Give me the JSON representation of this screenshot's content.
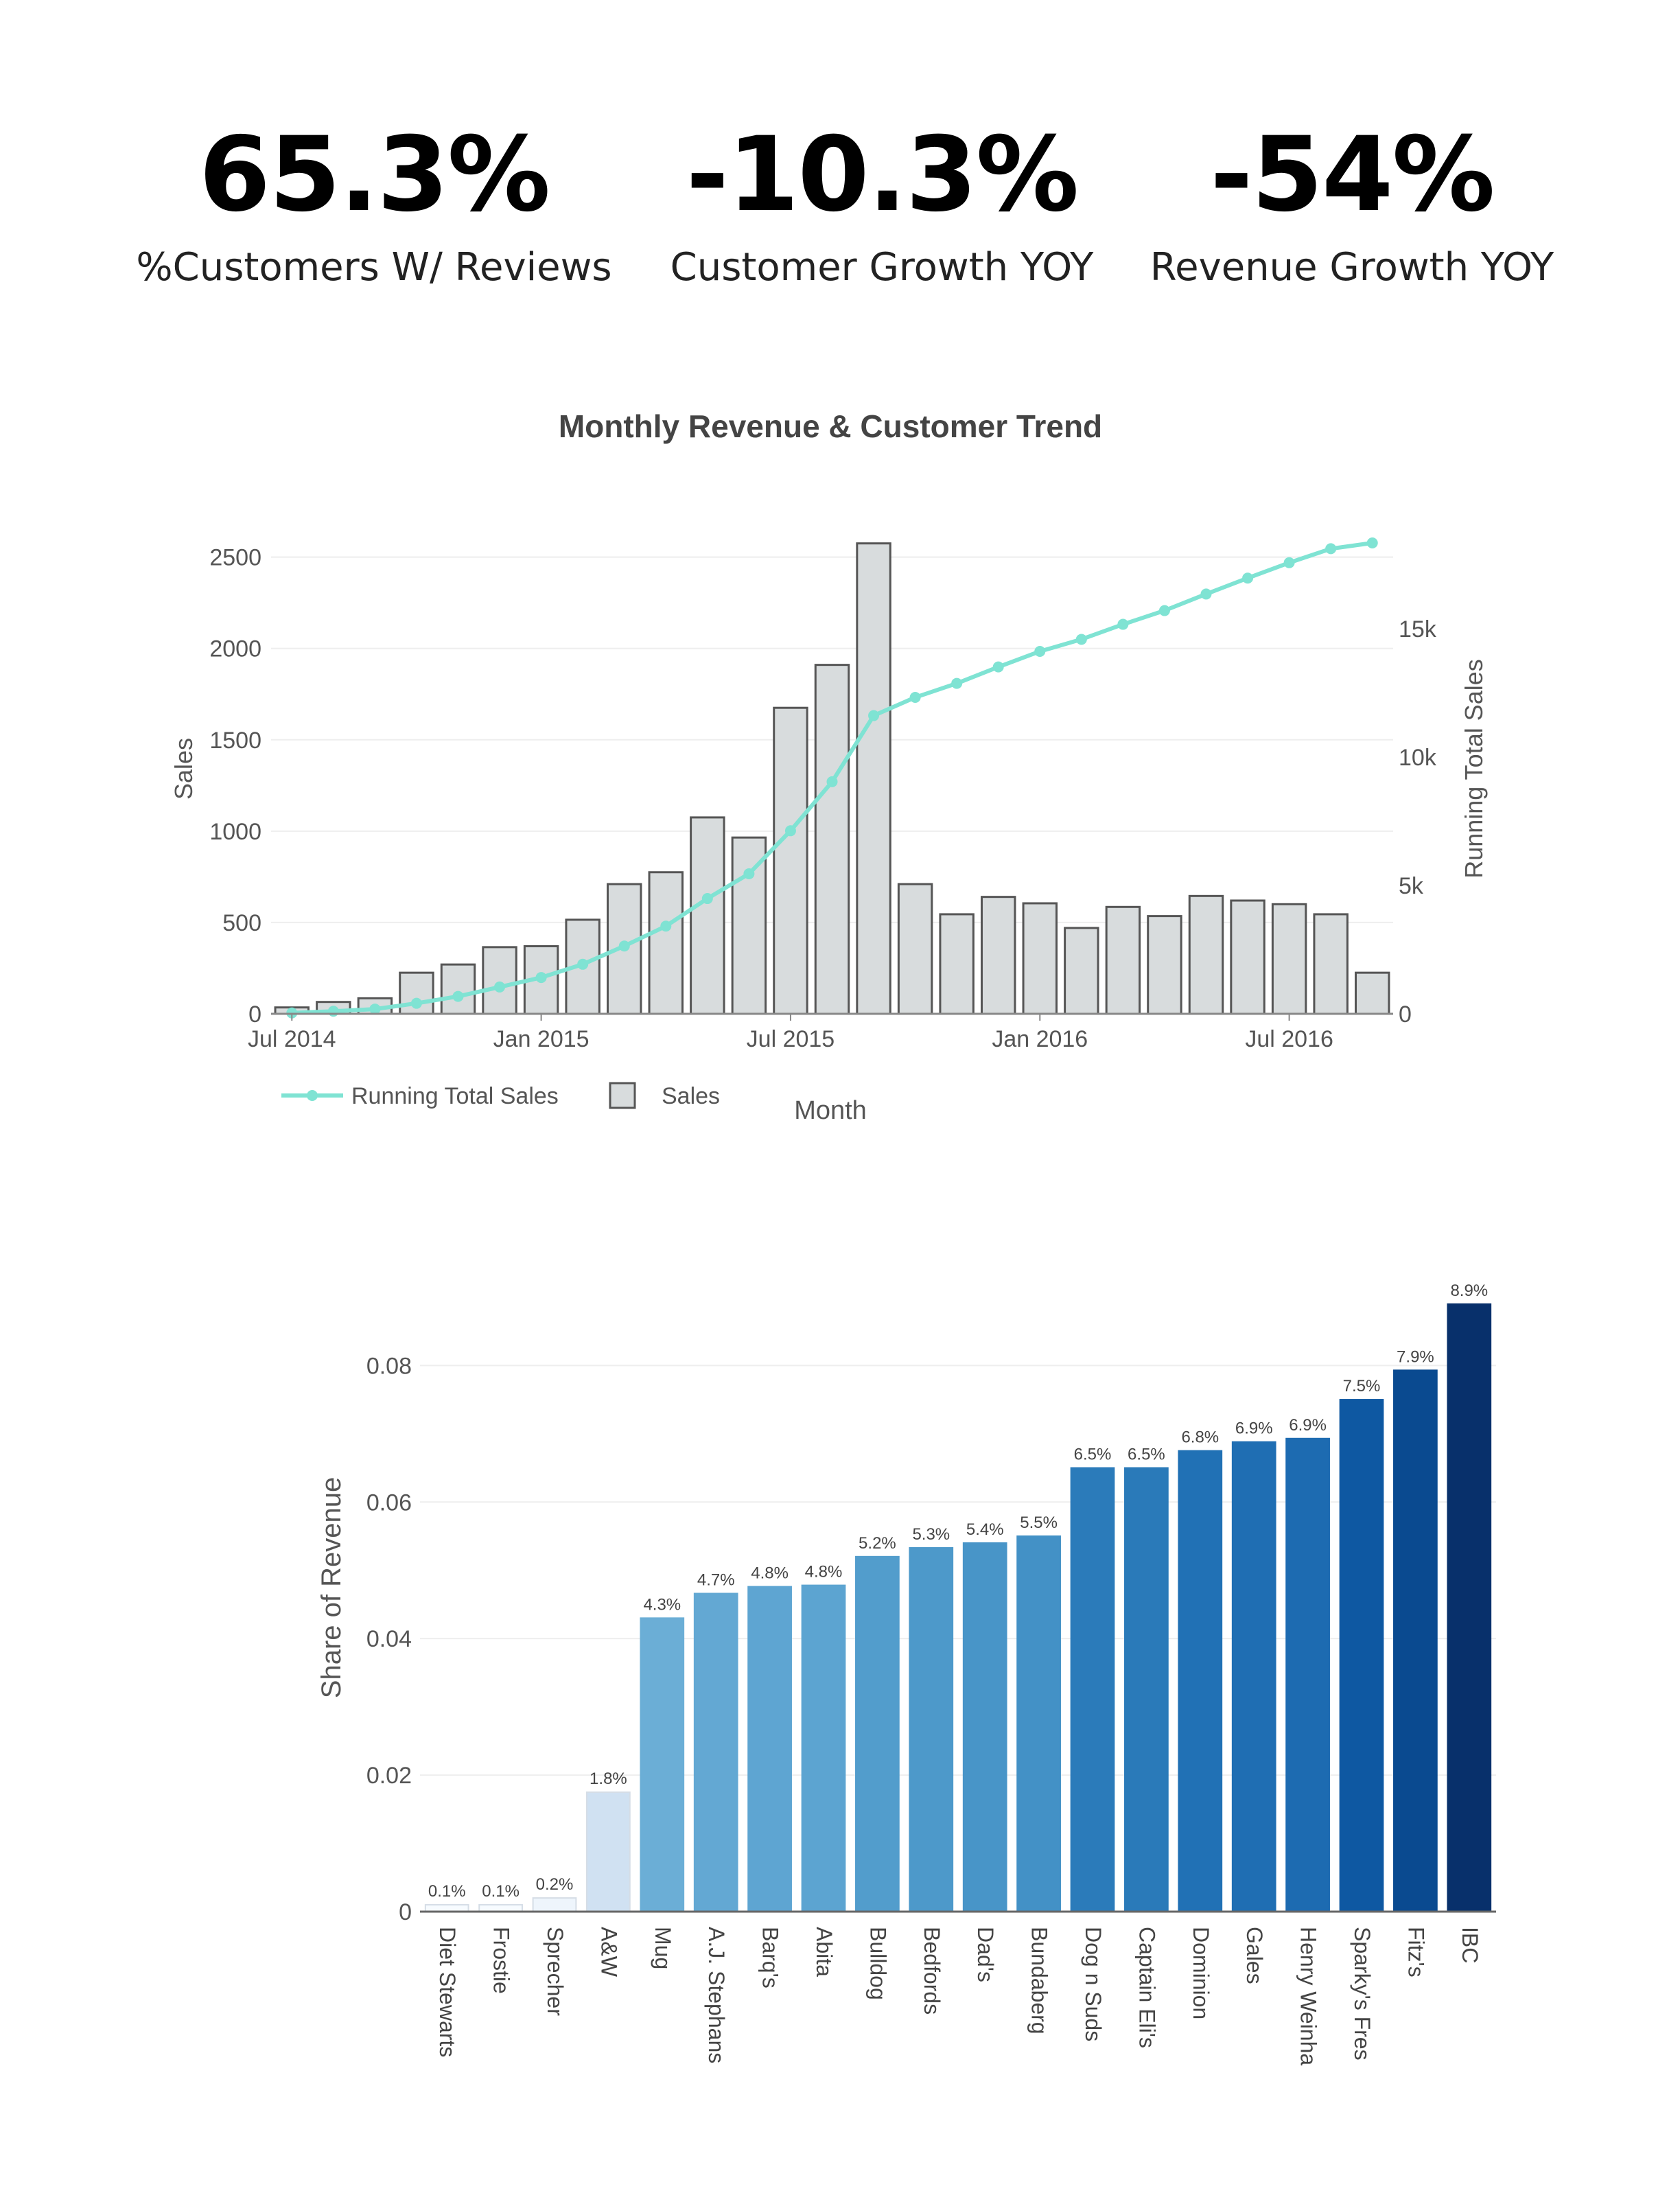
{
  "kpis": [
    {
      "value": "65.3%",
      "label": "%Customers W/ Reviews"
    },
    {
      "value": "-10.3%",
      "label": "Customer Growth YOY"
    },
    {
      "value": "-54%",
      "label": "Revenue Growth YOY"
    }
  ],
  "chart_data": [
    {
      "type": "bar+line",
      "title": "Monthly Revenue & Customer Trend",
      "xlabel": "Month",
      "ylabel": "Sales",
      "y2label": "Running Total Sales",
      "x_tick_labels": [
        "Jul 2014",
        "Jan 2015",
        "Jul 2015",
        "Jan 2016",
        "Jul 2016"
      ],
      "y_ticks": [
        0,
        500,
        1000,
        1500,
        2000,
        2500
      ],
      "y_tick_labels": [
        "0",
        "500",
        "1000",
        "1500",
        "2000",
        "2500"
      ],
      "y2_ticks": [
        0,
        5000,
        10000,
        15000
      ],
      "y2_tick_labels": [
        "0",
        "5k",
        "10k",
        "15k"
      ],
      "ylim": [
        0,
        2600
      ],
      "y2lim": [
        0,
        18500
      ],
      "legend_position": "bottom-left",
      "months": [
        "2014-07",
        "2014-08",
        "2014-09",
        "2014-10",
        "2014-11",
        "2014-12",
        "2015-01",
        "2015-02",
        "2015-03",
        "2015-04",
        "2015-05",
        "2015-06",
        "2015-07",
        "2015-08",
        "2015-09",
        "2015-10",
        "2015-11",
        "2015-12",
        "2016-01",
        "2016-02",
        "2016-03",
        "2016-04",
        "2016-05",
        "2016-06",
        "2016-07",
        "2016-08",
        "2016-09"
      ],
      "series": [
        {
          "name": "Sales",
          "kind": "bar",
          "color": "#d8dcdd",
          "values": [
            35,
            65,
            85,
            225,
            270,
            365,
            370,
            515,
            710,
            775,
            1075,
            965,
            1675,
            1910,
            2575,
            710,
            545,
            640,
            605,
            470,
            585,
            535,
            645,
            620,
            600,
            545,
            225
          ]
        },
        {
          "name": "Running Total Sales",
          "kind": "line",
          "color": "#7fe3d3",
          "values": [
            35,
            100,
            185,
            410,
            680,
            1045,
            1415,
            1930,
            2640,
            3415,
            4490,
            5455,
            7130,
            9040,
            11615,
            12325,
            12870,
            13510,
            14115,
            14585,
            15170,
            15705,
            16350,
            16970,
            17570,
            18115,
            18340
          ]
        }
      ]
    },
    {
      "type": "bar",
      "ylabel": "Share of Revenue",
      "xlabel": "",
      "ylim": [
        0,
        0.092
      ],
      "y_ticks": [
        0,
        0.02,
        0.04,
        0.06,
        0.08
      ],
      "y_tick_labels": [
        "0",
        "0.02",
        "0.04",
        "0.06",
        "0.08"
      ],
      "categories": [
        "Diet Stewarts",
        "Frostie",
        "Sprecher",
        "A&W",
        "Mug",
        "A.J. Stephans",
        "Barq's",
        "Abita",
        "Bulldog",
        "Bedfords",
        "Dad's",
        "Bundaberg",
        "Dog n Suds",
        "Captain Eli's",
        "Dominion",
        "Gales",
        "Henry Weinha",
        "Sparky's Fres",
        "Fitz's",
        "IBC"
      ],
      "values": [
        0.001,
        0.001,
        0.002,
        0.0175,
        0.043,
        0.0466,
        0.0476,
        0.0478,
        0.052,
        0.0533,
        0.054,
        0.055,
        0.065,
        0.065,
        0.0675,
        0.0688,
        0.0693,
        0.075,
        0.0793,
        0.089
      ],
      "data_labels": [
        "0.1%",
        "0.1%",
        "0.2%",
        "1.8%",
        "4.3%",
        "4.7%",
        "4.8%",
        "4.8%",
        "5.2%",
        "5.3%",
        "5.4%",
        "5.5%",
        "6.5%",
        "6.5%",
        "6.8%",
        "6.9%",
        "6.9%",
        "7.5%",
        "7.9%",
        "8.9%"
      ],
      "colors": [
        "#f7fbff",
        "#f7fbff",
        "#eef5fc",
        "#d0e1f2",
        "#6baed6",
        "#63a8d3",
        "#5ea5d2",
        "#5ca4d1",
        "#529dcc",
        "#4d99ca",
        "#4895c8",
        "#4391c6",
        "#2b7bba",
        "#2a7ab9",
        "#2171b5",
        "#1f6eb3",
        "#1d6bb1",
        "#0e58a2",
        "#0a4a90",
        "#08306b"
      ]
    }
  ]
}
